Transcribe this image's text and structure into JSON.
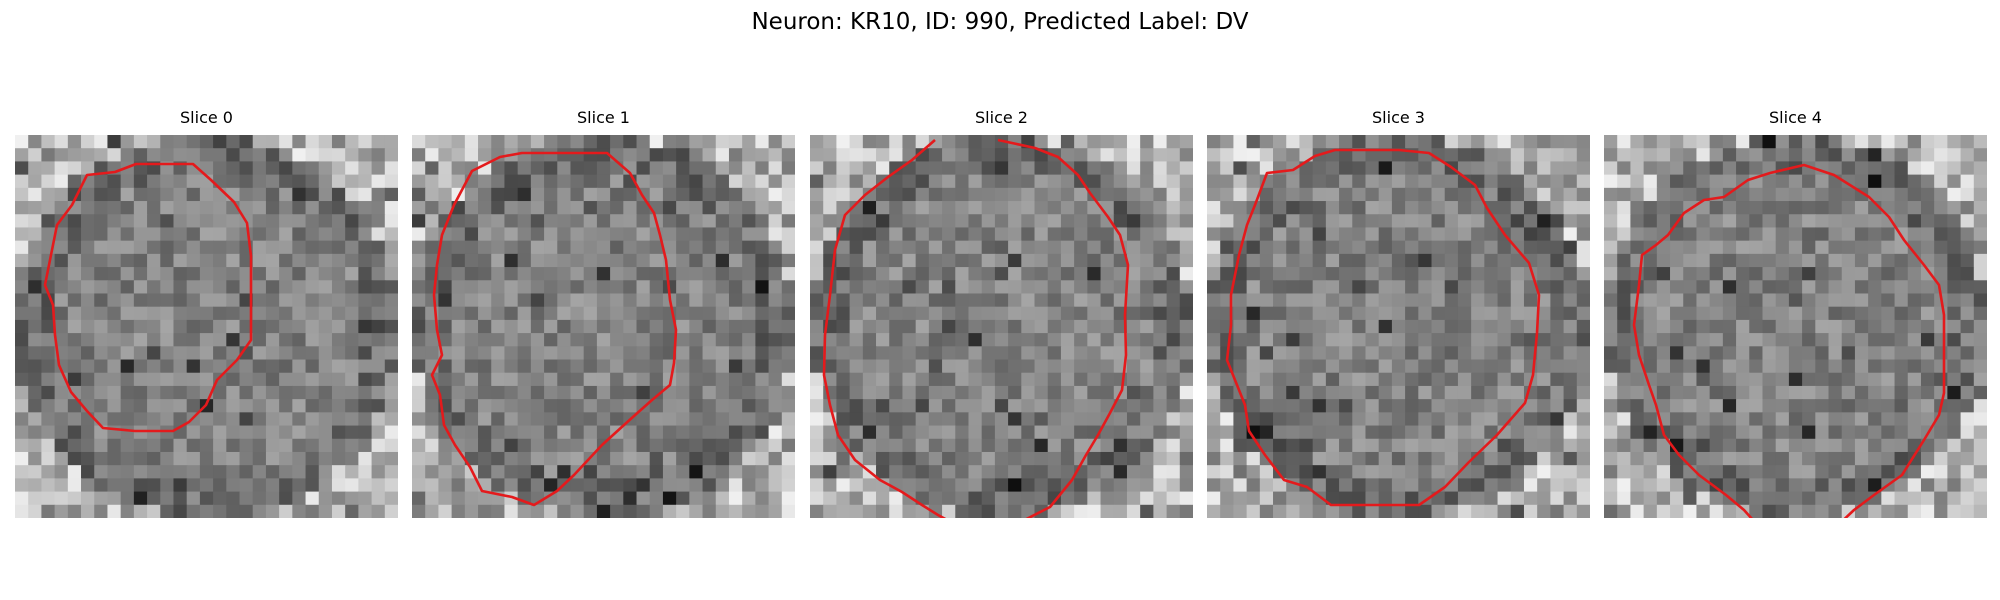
{
  "figure": {
    "title": "Neuron: KR10, ID: 990, Predicted Label: DV"
  },
  "panels": [
    {
      "title": "Slice 0",
      "seed": 11
    },
    {
      "title": "Slice 1",
      "seed": 23
    },
    {
      "title": "Slice 2",
      "seed": 37
    },
    {
      "title": "Slice 3",
      "seed": 41
    },
    {
      "title": "Slice 4",
      "seed": 59
    }
  ],
  "colors": {
    "contour": "#e41a1c",
    "background": "#ffffff"
  },
  "image_style": "grayscale-pixel-grid"
}
